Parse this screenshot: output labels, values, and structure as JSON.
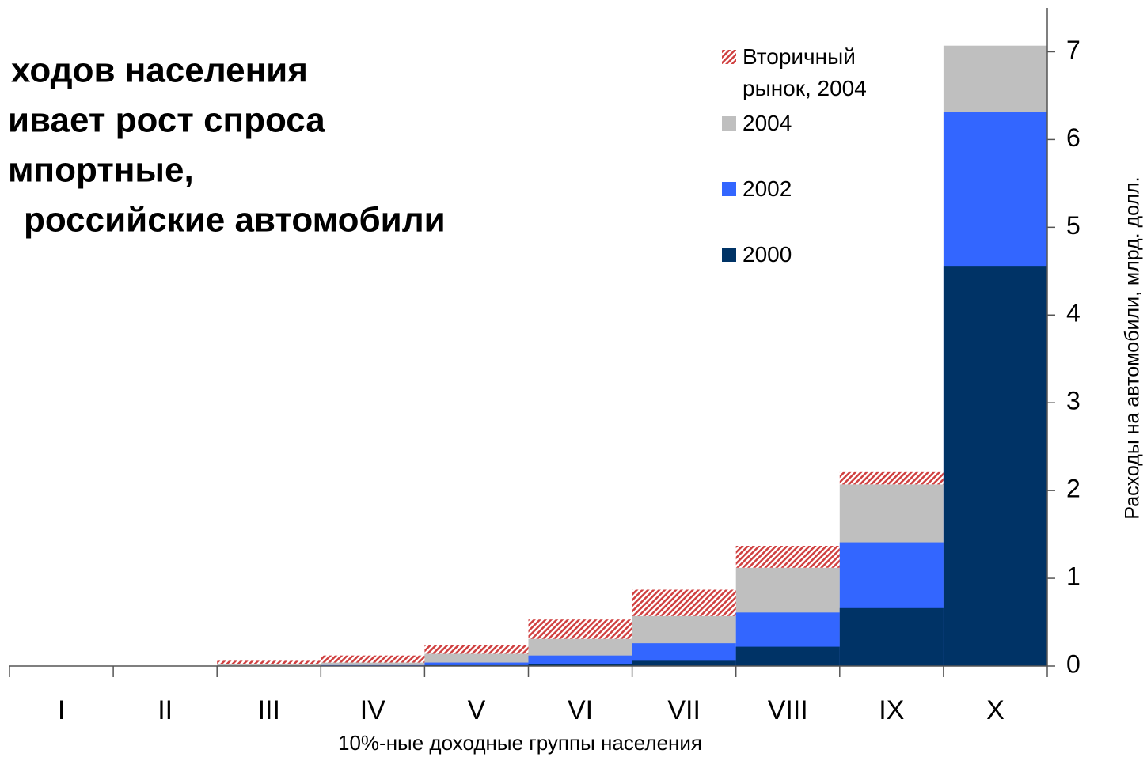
{
  "chart_data": {
    "type": "bar",
    "title_lines": [
      "ходов населения",
      "ивает рост спроса",
      "мпортные,",
      "российские автомобили"
    ],
    "x_label": "10%-ные доходные группы населения",
    "y_label": "Расходы на автомобили, млрд. долл.",
    "categories": [
      "I",
      "II",
      "III",
      "IV",
      "V",
      "VI",
      "VII",
      "VIII",
      "IX",
      "X"
    ],
    "series": [
      {
        "name": "Вторичный рынок, 2004",
        "color": "#d04040",
        "hatch": true,
        "values": [
          0,
          0,
          0.04,
          0.08,
          0.1,
          0.22,
          0.3,
          0.25,
          0.14,
          0
        ]
      },
      {
        "name": "2004",
        "color": "#bfbfbf",
        "values": [
          0,
          0,
          0.02,
          0.04,
          0.14,
          0.31,
          0.57,
          1.12,
          2.07,
          7.07
        ]
      },
      {
        "name": "2002",
        "color": "#3366ff",
        "values": [
          0,
          0,
          0,
          0.01,
          0.04,
          0.12,
          0.26,
          0.61,
          1.41,
          6.31
        ]
      },
      {
        "name": "2000",
        "color": "#003366",
        "values": [
          0,
          0,
          0,
          0,
          0.01,
          0.02,
          0.06,
          0.22,
          0.66,
          4.56
        ]
      }
    ],
    "ylim": [
      0,
      7.5
    ],
    "yticks": [
      0,
      1,
      2,
      3,
      4,
      5,
      6,
      7
    ],
    "grid": false
  }
}
